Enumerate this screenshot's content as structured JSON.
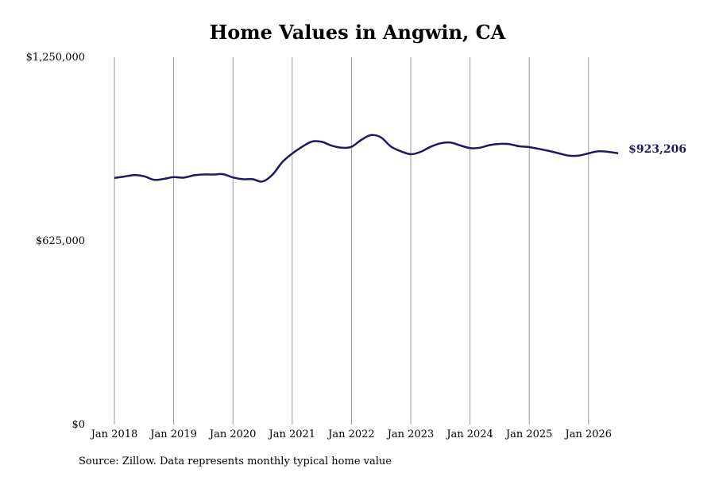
{
  "chart_data": {
    "type": "line",
    "title": "Home Values in Angwin, CA",
    "xlabel": "",
    "ylabel": "",
    "ylim": [
      0,
      1250000
    ],
    "y_ticks": [
      0,
      625000,
      1250000
    ],
    "y_tick_labels": [
      "$0",
      "$625,000",
      "$1,250,000"
    ],
    "x_ticks": [
      2018,
      2019,
      2020,
      2021,
      2022,
      2023,
      2024,
      2025,
      2026
    ],
    "x_tick_labels": [
      "Jan 2018",
      "Jan 2019",
      "Jan 2020",
      "Jan 2021",
      "Jan 2022",
      "Jan 2023",
      "Jan 2024",
      "Jan 2025",
      "Jan 2026"
    ],
    "grid": "vertical",
    "line_color": "#1a1a5e",
    "series": [
      {
        "x": [
          2018.0,
          2018.1667,
          2018.3333,
          2018.5,
          2018.6667,
          2018.8333,
          2019.0,
          2019.1667,
          2019.3333,
          2019.5,
          2019.6667,
          2019.8333,
          2020.0,
          2020.1667,
          2020.3333,
          2020.5,
          2020.6667,
          2020.8333,
          2021.0,
          2021.1667,
          2021.3333,
          2021.5,
          2021.6667,
          2021.8333,
          2022.0,
          2022.1667,
          2022.3333,
          2022.5,
          2022.6667,
          2022.8333,
          2023.0,
          2023.1667,
          2023.3333,
          2023.5,
          2023.6667,
          2023.8333,
          2024.0,
          2024.1667,
          2024.3333,
          2024.5,
          2024.6667,
          2024.8333,
          2025.0,
          2025.1667,
          2025.3333,
          2025.5,
          2025.6667,
          2025.8333,
          2026.0,
          2026.1667,
          2026.3333,
          2026.5
        ],
        "values": [
          839000,
          844000,
          849000,
          845000,
          833000,
          836000,
          842000,
          840000,
          848000,
          851000,
          851000,
          852000,
          841000,
          835000,
          835000,
          827000,
          850000,
          893000,
          922000,
          945000,
          963000,
          962000,
          949000,
          942000,
          945000,
          969000,
          985000,
          977000,
          946000,
          930000,
          920000,
          928000,
          945000,
          957000,
          960000,
          950000,
          941000,
          942000,
          951000,
          955000,
          954000,
          947000,
          944000,
          938000,
          931000,
          923000,
          915000,
          915000,
          923000,
          930000,
          928000,
          923206
        ]
      }
    ],
    "end_label": "$923,206",
    "source_note": "Source: Zillow. Data represents monthly typical home value"
  }
}
